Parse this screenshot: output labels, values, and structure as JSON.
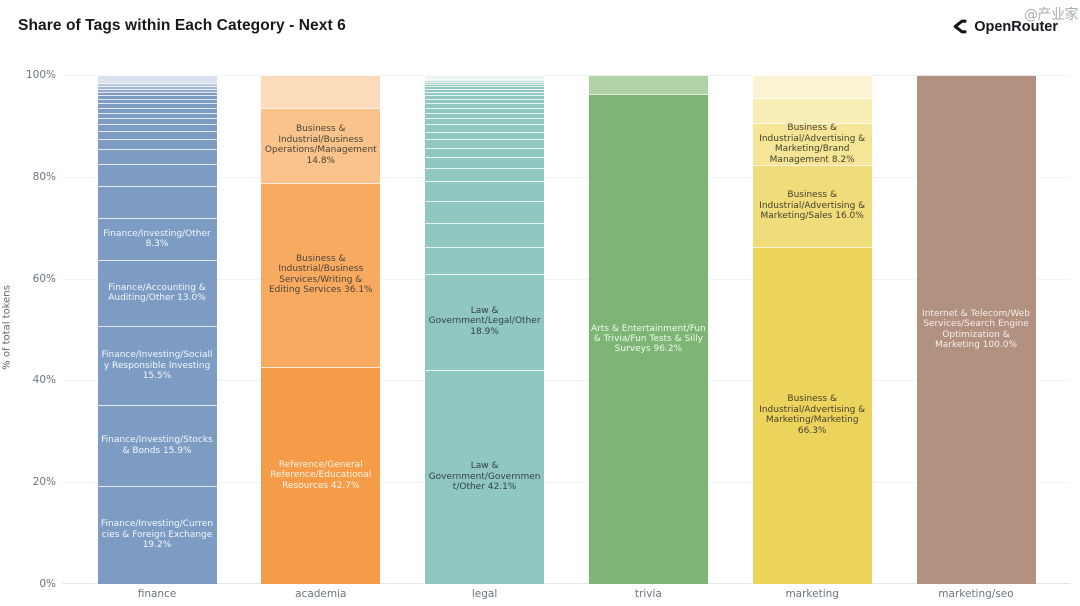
{
  "header": {
    "title": "Share of Tags within Each Category - Next 6",
    "brand": "OpenRouter",
    "watermark": "@产业家"
  },
  "chart_data": {
    "type": "bar",
    "variant": "stacked-percent",
    "title": "Share of Tags within Each Category - Next 6",
    "xlabel": "",
    "ylabel": "% of total tokens",
    "ylim": [
      0,
      100
    ],
    "grid": true,
    "legend": false,
    "yticks": [
      "0%",
      "20%",
      "40%",
      "60%",
      "80%",
      "100%"
    ],
    "categories": [
      "finance",
      "academia",
      "legal",
      "trivia",
      "marketing",
      "marketing/seo"
    ],
    "bars": [
      {
        "category": "finance",
        "color": "#7d9cc4",
        "label_color": "#f3f7fb",
        "segments": [
          {
            "label": "Finance/Investing/Currencies & Foreign Exchange 19.2%",
            "value": 19.2
          },
          {
            "label": "Finance/Investing/Stocks & Bonds 15.9%",
            "value": 15.9
          },
          {
            "label": "Finance/Investing/Socially Responsible Investing 15.5%",
            "value": 15.5
          },
          {
            "label": "Finance/Accounting & Auditing/Other 13.0%",
            "value": 13.0
          },
          {
            "label": "Finance/Investing/Other 8.3%",
            "value": 8.3
          },
          {
            "label": null,
            "value": 6.3
          },
          {
            "label": null,
            "value": 4.3
          },
          {
            "label": null,
            "value": 2.9
          },
          {
            "label": null,
            "value": 2.1
          },
          {
            "label": null,
            "value": 1.5
          },
          {
            "label": null,
            "value": 1.3
          },
          {
            "label": null,
            "value": 1.2
          },
          {
            "label": null,
            "value": 1.1
          },
          {
            "label": null,
            "value": 1.0
          },
          {
            "label": null,
            "value": 0.9
          },
          {
            "label": null,
            "value": 0.8
          },
          {
            "label": null,
            "value": 0.7
          },
          {
            "label": null,
            "value": 0.7
          },
          {
            "label": null,
            "value": 0.6,
            "color": "#92aacb"
          },
          {
            "label": null,
            "value": 0.6,
            "color": "#a3b7d2"
          },
          {
            "label": null,
            "value": 0.5,
            "color": "#b7c7dc"
          },
          {
            "label": null,
            "value": 1.6,
            "color": "#d9e2ee"
          }
        ]
      },
      {
        "category": "academia",
        "color": "#f59c49",
        "label_color": "#4a4336",
        "segments": [
          {
            "label": "Reference/General Reference/Educational Resources 42.7%",
            "value": 42.7,
            "color": "#f59c49",
            "text_color": "#fdf3e7"
          },
          {
            "label": "Business & Industrial/Business Services/Writing & Editing Services 36.1%",
            "value": 36.1,
            "color": "#f8aa60"
          },
          {
            "label": "Business & Industrial/Business Operations/Management 14.8%",
            "value": 14.8,
            "color": "#fac38c"
          },
          {
            "label": null,
            "value": 6.4,
            "color": "#fcdcba"
          }
        ]
      },
      {
        "category": "legal",
        "color": "#90c7c0",
        "label_color": "#333f4d",
        "segments": [
          {
            "label": "Law & Government/Government/Other 42.1%",
            "value": 42.1
          },
          {
            "label": "Law & Government/Legal/Other 18.9%",
            "value": 18.9
          },
          {
            "label": null,
            "value": 5.3
          },
          {
            "label": null,
            "value": 4.7
          },
          {
            "label": null,
            "value": 4.3
          },
          {
            "label": null,
            "value": 3.9
          },
          {
            "label": null,
            "value": 2.5
          },
          {
            "label": null,
            "value": 2.1
          },
          {
            "label": null,
            "value": 1.9
          },
          {
            "label": null,
            "value": 1.7
          },
          {
            "label": null,
            "value": 1.5
          },
          {
            "label": null,
            "value": 1.4
          },
          {
            "label": null,
            "value": 1.2
          },
          {
            "label": null,
            "value": 1.1
          },
          {
            "label": null,
            "value": 1.0
          },
          {
            "label": null,
            "value": 0.9
          },
          {
            "label": null,
            "value": 0.8
          },
          {
            "label": null,
            "value": 0.7
          },
          {
            "label": null,
            "value": 0.65
          },
          {
            "label": null,
            "value": 0.6
          },
          {
            "label": null,
            "value": 0.55
          },
          {
            "label": null,
            "value": 0.5
          },
          {
            "label": null,
            "value": 0.35,
            "color": "#a6d2cb"
          },
          {
            "label": null,
            "value": 0.3,
            "color": "#bedcd7"
          },
          {
            "label": null,
            "value": 0.25,
            "color": "#d5e9e5"
          },
          {
            "label": null,
            "value": 0.8,
            "color": "#eaf4f1"
          }
        ]
      },
      {
        "category": "trivia",
        "color": "#7cb574",
        "label_color": "#f2f8f0",
        "segments": [
          {
            "label": "Arts & Entertainment/Fun & Trivia/Fun Tests & Silly Surveys 96.2%",
            "value": 96.2
          },
          {
            "label": null,
            "value": 3.8,
            "color": "#afd2a6"
          }
        ]
      },
      {
        "category": "marketing",
        "color": "#ecd45c",
        "label_color": "#46412e",
        "segments": [
          {
            "label": "Business & Industrial/Advertising & Marketing/Marketing 66.3%",
            "value": 66.3,
            "color": "#ecd45c"
          },
          {
            "label": "Business & Industrial/Advertising & Marketing/Sales 16.0%",
            "value": 16.0,
            "color": "#f0dc7b"
          },
          {
            "label": "Business & Industrial/Advertising & Marketing/Brand Management 8.2%",
            "value": 8.2,
            "color": "#f5e597"
          },
          {
            "label": null,
            "value": 4.9,
            "color": "#f8edb5"
          },
          {
            "label": null,
            "value": 4.6,
            "color": "#fbf3d1"
          }
        ]
      },
      {
        "category": "marketing/seo",
        "color": "#b29180",
        "label_color": "#f6efeb",
        "segments": [
          {
            "label": "Internet & Telecom/Web Services/Search Engine Optimization & Marketing 100.0%",
            "value": 100.0
          }
        ]
      }
    ]
  }
}
